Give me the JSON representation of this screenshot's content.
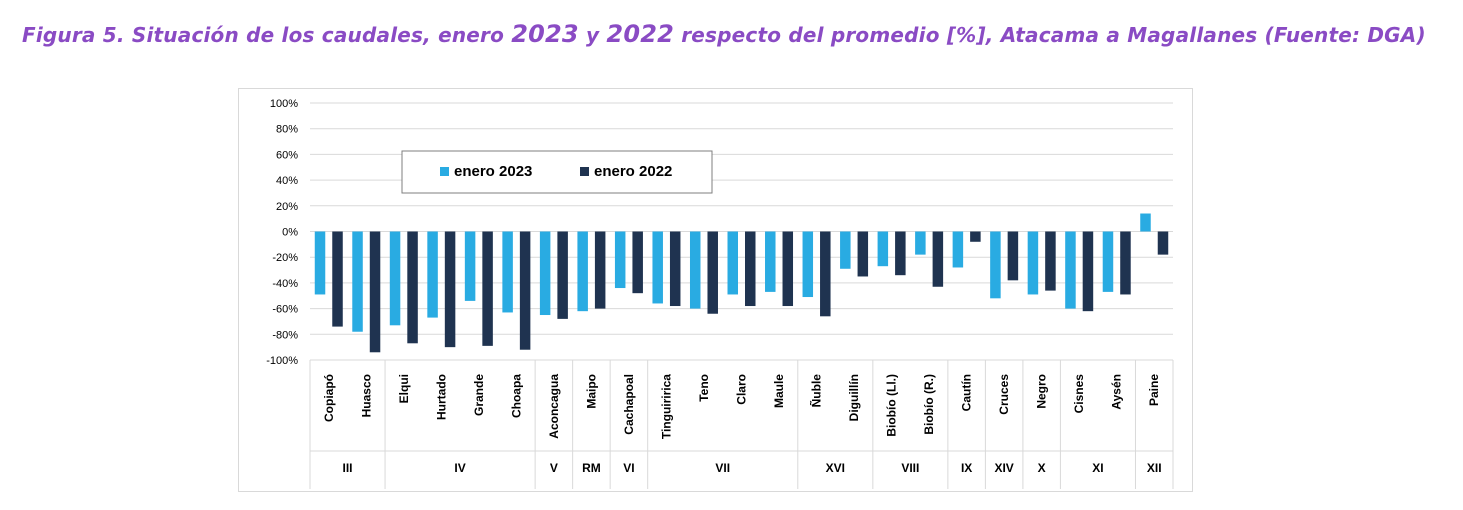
{
  "figure": {
    "label": "Figura 5.",
    "title_part1": "Situación de los caudales, enero ",
    "year_a": "2023",
    "connector": " y ",
    "year_b": "2022",
    "title_part2": " respecto del promedio [%], Atacama a Magallanes (Fuente: DGA)"
  },
  "colors": {
    "title": "#8a4bc4",
    "enero_2023": "#29abe2",
    "enero_2022": "#1f3350",
    "grid": "#d9d9d9"
  },
  "chart_data": {
    "type": "bar",
    "title": "",
    "xlabel": "",
    "ylabel": "",
    "ylim": [
      -100,
      100
    ],
    "yticks": [
      100,
      80,
      60,
      40,
      20,
      0,
      -20,
      -40,
      -60,
      -80,
      -100
    ],
    "ytick_format": "percent",
    "grid": true,
    "legend_position": "top-left-inside",
    "categories": [
      "Copiapó",
      "Huasco",
      "Elqui",
      "Hurtado",
      "Grande",
      "Choapa",
      "Aconcagua",
      "Maipo",
      "Cachapoal",
      "Tinguiririca",
      "Teno",
      "Claro",
      "Maule",
      "Ñuble",
      "Diguillín",
      "Biobío (Ll.)",
      "Biobío (R.)",
      "Cautín",
      "Cruces",
      "Negro",
      "Cisnes",
      "Aysén",
      "Paine"
    ],
    "series": [
      {
        "name": "enero 2023",
        "values": [
          -49,
          -78,
          -73,
          -67,
          -54,
          -63,
          -65,
          -62,
          -44,
          -56,
          -60,
          -49,
          -47,
          -51,
          -29,
          -27,
          -18,
          -28,
          -52,
          -49,
          -60,
          -47,
          14
        ]
      },
      {
        "name": "enero 2022",
        "values": [
          -74,
          -94,
          -87,
          -90,
          -89,
          -92,
          -68,
          -60,
          -48,
          -58,
          -64,
          -58,
          -58,
          -66,
          -35,
          -34,
          -43,
          -8,
          -38,
          -46,
          -62,
          -49,
          -18
        ]
      }
    ],
    "regions": [
      {
        "label": "III",
        "count": 2
      },
      {
        "label": "IV",
        "count": 4
      },
      {
        "label": "V",
        "count": 1
      },
      {
        "label": "RM",
        "count": 1
      },
      {
        "label": "VI",
        "count": 1
      },
      {
        "label": "VII",
        "count": 4
      },
      {
        "label": "XVI",
        "count": 2
      },
      {
        "label": "VIII",
        "count": 2
      },
      {
        "label": "IX",
        "count": 1
      },
      {
        "label": "XIV",
        "count": 1
      },
      {
        "label": "X",
        "count": 1
      },
      {
        "label": "XI",
        "count": 2
      },
      {
        "label": "XII",
        "count": 1
      }
    ]
  }
}
